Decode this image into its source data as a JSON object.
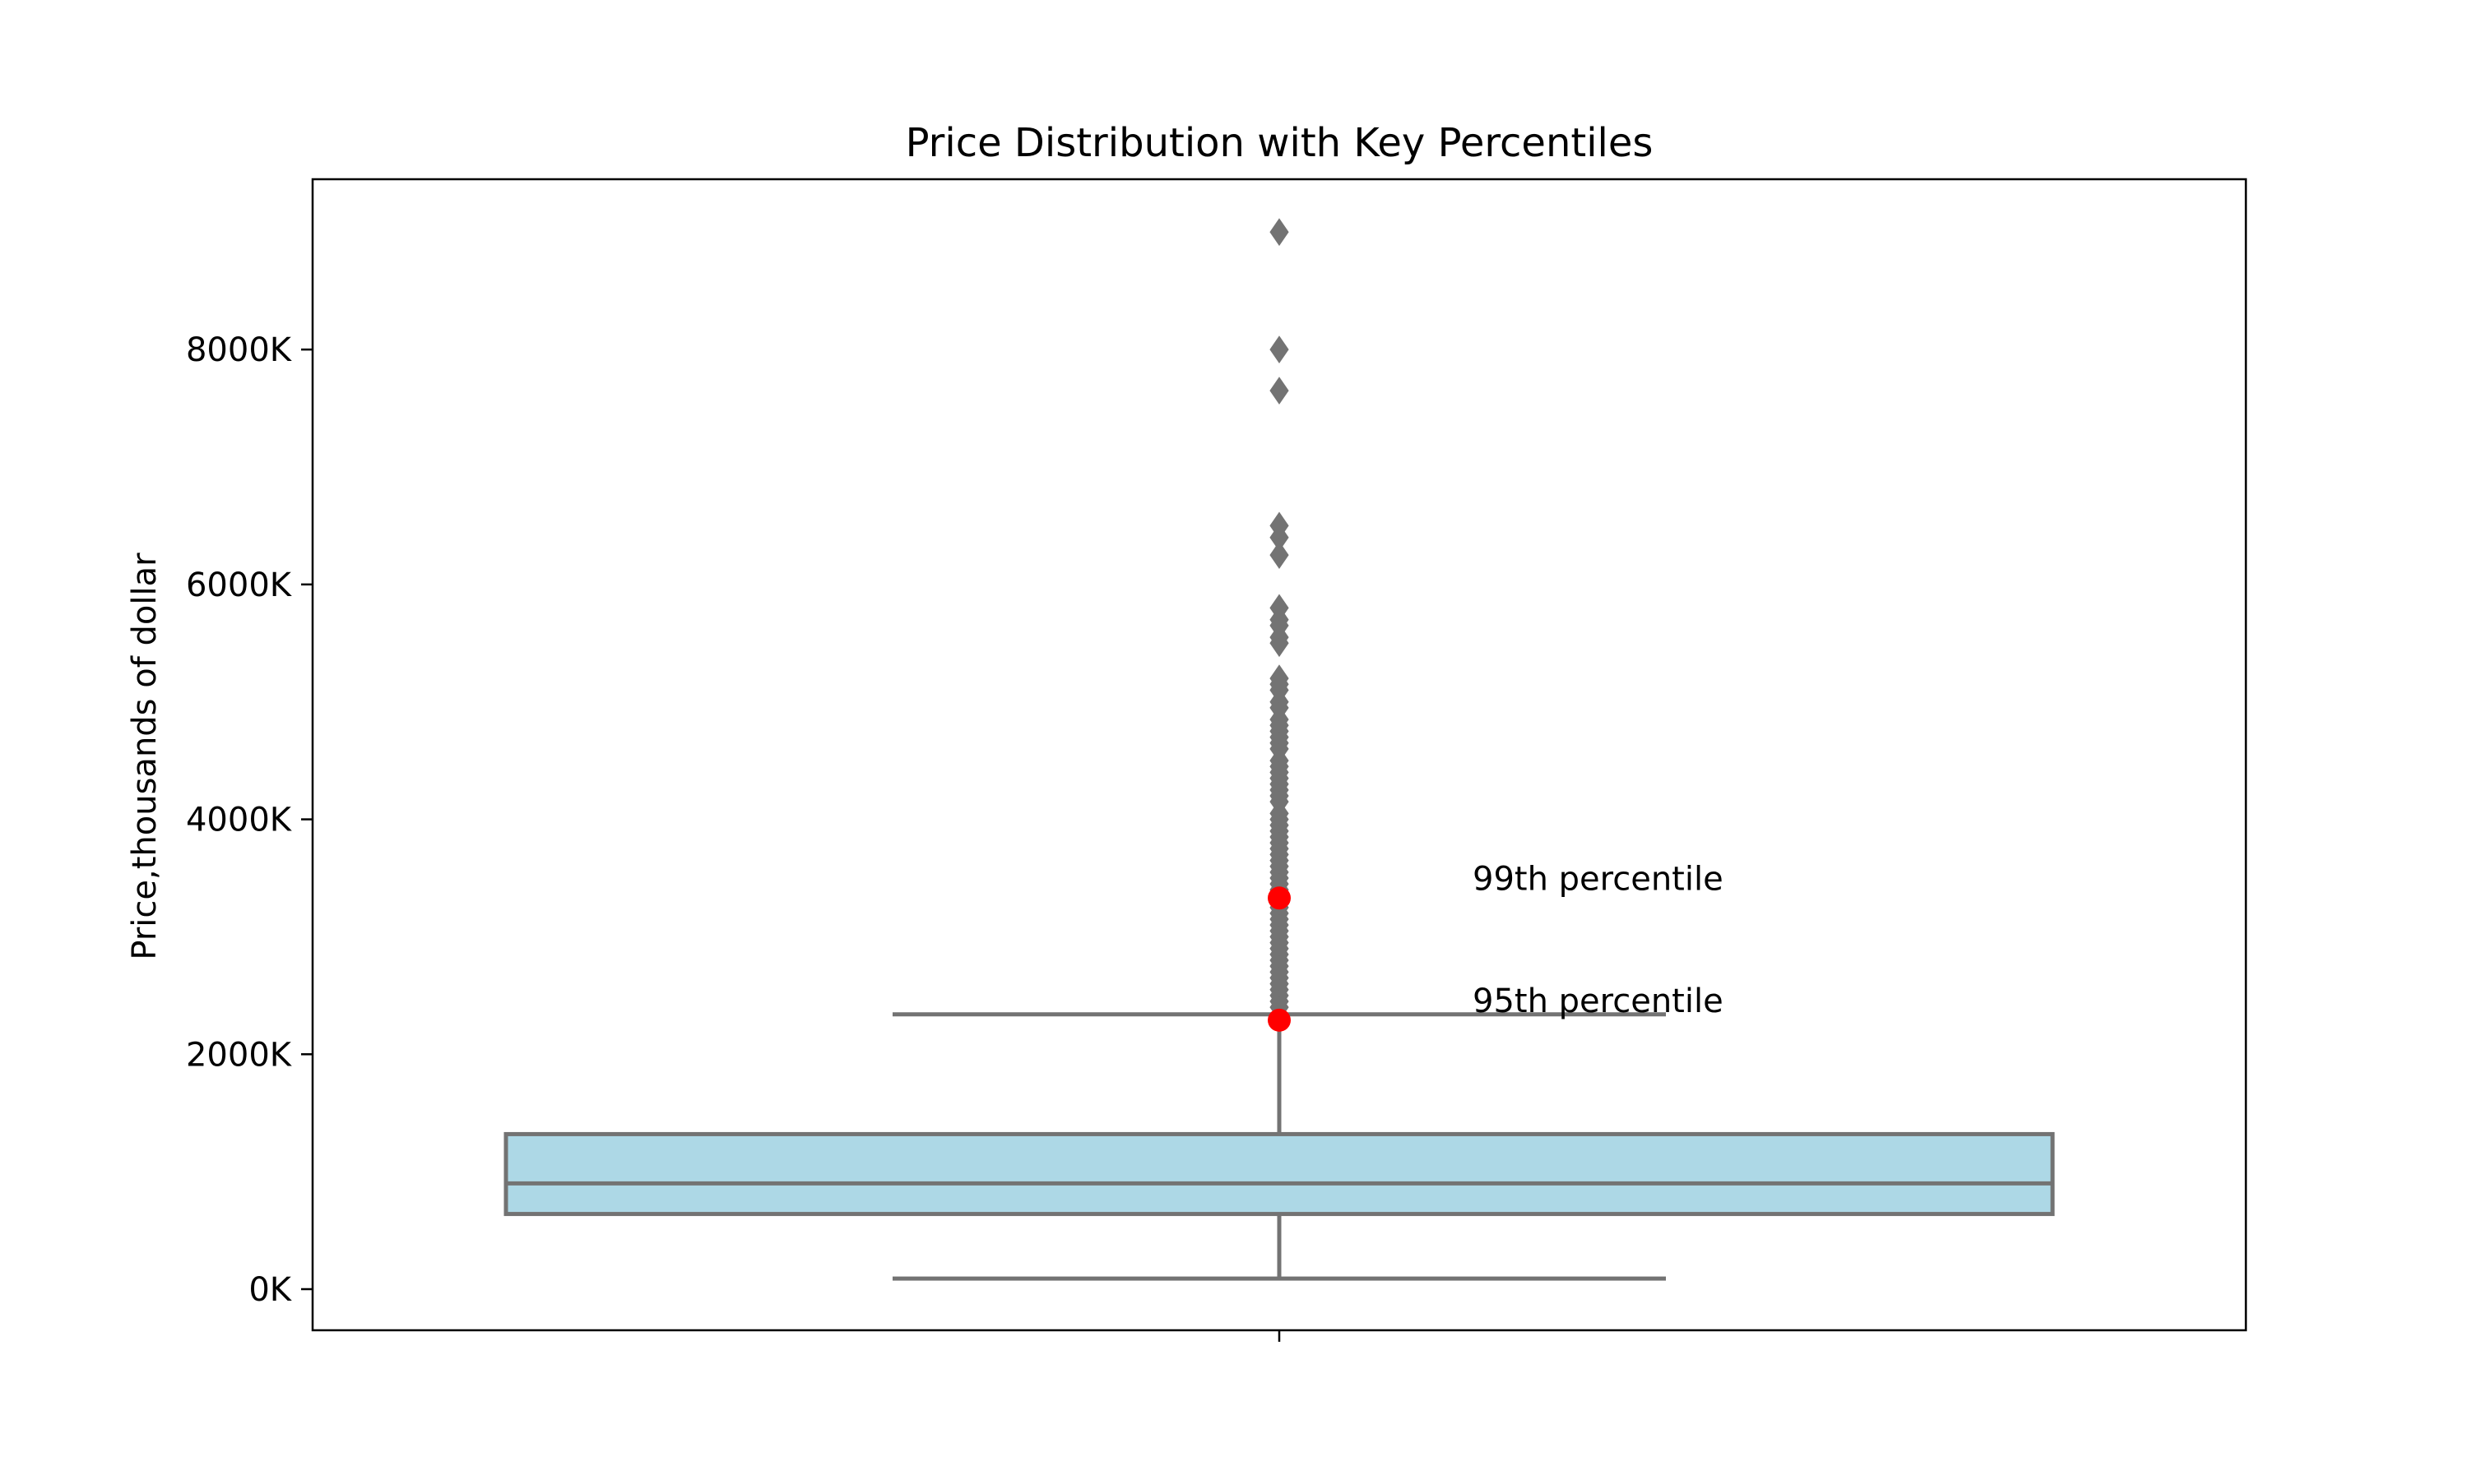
{
  "chart_data": {
    "type": "box",
    "title": "Price Distribution with Key Percentiles",
    "xlabel": "",
    "ylabel": "Price,thousands of dollar",
    "ylim": [
      -350,
      9450
    ],
    "yticks": [
      {
        "value": 0,
        "label": "0K"
      },
      {
        "value": 2000,
        "label": "2000K"
      },
      {
        "value": 4000,
        "label": "4000K"
      },
      {
        "value": 6000,
        "label": "6000K"
      },
      {
        "value": 8000,
        "label": "8000K"
      }
    ],
    "box": {
      "whisker_low": 90,
      "q1": 640,
      "median": 900,
      "q3": 1320,
      "whisker_high": 2340,
      "fill_color": "#add8e6",
      "line_color": "#737373"
    },
    "outliers": [
      2400,
      2450,
      2500,
      2550,
      2600,
      2650,
      2700,
      2750,
      2800,
      2850,
      2900,
      2950,
      3000,
      3050,
      3100,
      3150,
      3200,
      3250,
      3300,
      3350,
      3400,
      3450,
      3500,
      3550,
      3600,
      3650,
      3700,
      3750,
      3800,
      3850,
      3900,
      3950,
      4000,
      4050,
      4150,
      4200,
      4250,
      4300,
      4350,
      4400,
      4450,
      4500,
      4600,
      4650,
      4700,
      4750,
      4800,
      4850,
      4950,
      5000,
      5100,
      5150,
      5200,
      5500,
      5550,
      5650,
      5700,
      5800,
      6250,
      6400,
      6500,
      7650,
      8000,
      9000
    ],
    "percentile_markers": [
      {
        "label": "95th percentile",
        "value": 2290
      },
      {
        "label": "99th percentile",
        "value": 3330
      }
    ],
    "marker_color": "#ff0000",
    "grid": false,
    "legend": "none"
  }
}
